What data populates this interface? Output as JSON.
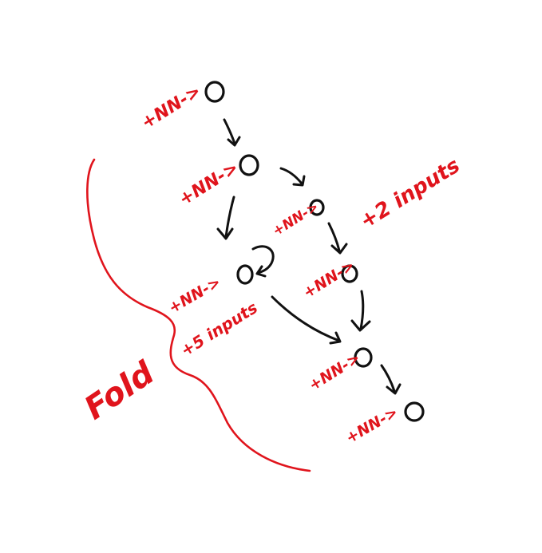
{
  "colors": {
    "ink": "#111111",
    "annotation": "#e0141c",
    "background": "#ffffff"
  },
  "labels": {
    "nn_1": "+NN->",
    "nn_2": "+NN->",
    "nn_3": "+NN->",
    "nn_4": "+NN->",
    "nn_5": "+NN->",
    "nn_6": "+NN->",
    "nn_7": "+NN->",
    "nn_8": "+NN->",
    "plus_two_inputs": "+2 inputs",
    "plus_five_inputs": "+5 inputs",
    "fold": "Fold"
  }
}
